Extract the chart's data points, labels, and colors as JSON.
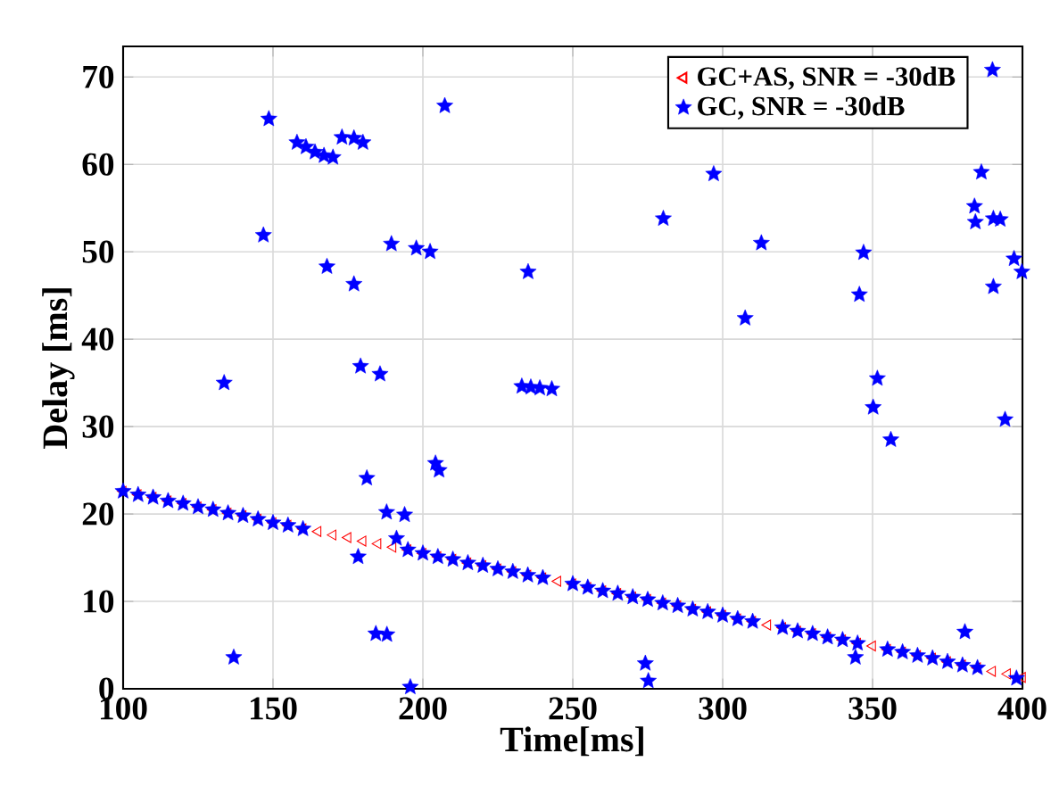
{
  "chart_data": {
    "type": "scatter",
    "xlabel": "Time[ms]",
    "ylabel": "Delay [ms]",
    "xlim": [
      100,
      400
    ],
    "ylim": [
      0,
      73.5
    ],
    "xticks": [
      100,
      150,
      200,
      250,
      300,
      350,
      400
    ],
    "yticks": [
      0,
      10,
      20,
      30,
      40,
      50,
      60,
      70
    ],
    "grid": true,
    "legend": "top right",
    "series": [
      {
        "name": "GC+AS, SNR = -30dB",
        "color": "#ff0000",
        "marker": "triangle",
        "x": [
          100,
          105,
          110,
          115,
          120,
          125,
          130,
          135,
          140,
          145,
          150,
          155,
          160,
          165,
          170,
          175,
          180,
          185,
          190,
          195,
          200,
          205,
          210,
          215,
          220,
          225,
          230,
          235,
          240,
          245,
          250,
          255,
          260,
          265,
          270,
          275,
          280,
          285,
          290,
          295,
          300,
          305,
          310,
          315,
          320,
          325,
          330,
          335,
          340,
          345,
          350,
          355,
          360,
          365,
          370,
          375,
          380,
          385,
          390,
          395,
          400
        ],
        "values": [
          22.6,
          22.2,
          21.9,
          21.5,
          21.2,
          20.8,
          20.5,
          20.1,
          19.8,
          19.4,
          19.0,
          18.7,
          18.3,
          18.0,
          17.6,
          17.3,
          16.9,
          16.6,
          16.2,
          15.9,
          15.5,
          15.1,
          14.8,
          14.4,
          14.1,
          13.7,
          13.4,
          13.0,
          12.7,
          12.3,
          12.0,
          11.6,
          11.2,
          10.9,
          10.5,
          10.2,
          9.8,
          9.5,
          9.1,
          8.8,
          8.4,
          8.0,
          7.7,
          7.3,
          7.0,
          6.6,
          6.3,
          5.9,
          5.6,
          5.2,
          4.9,
          4.5,
          4.2,
          3.8,
          3.5,
          3.1,
          2.7,
          2.4,
          2.0,
          1.7,
          1.3
        ]
      },
      {
        "name": "GC, SNR = -30dB",
        "color": "#0000ff",
        "marker": "star",
        "x": [
          100,
          105,
          110,
          115,
          120,
          125,
          130,
          135,
          140,
          145,
          150,
          155,
          160,
          195,
          200,
          205,
          210,
          215,
          220,
          225,
          230,
          235,
          240,
          250,
          255,
          260,
          265,
          270,
          275,
          280,
          285,
          290,
          295,
          300,
          305,
          310,
          320,
          325,
          330,
          335,
          340,
          345,
          355,
          360,
          365,
          370,
          375,
          380,
          385,
          398,
          148.6,
          158,
          161,
          164,
          167,
          170,
          173,
          177,
          180,
          207.3,
          146.8,
          189.5,
          197.8,
          202.4,
          168,
          177,
          235.1,
          179.2,
          185.7,
          133.7,
          233,
          236,
          239,
          243,
          181.3,
          204.2,
          205.4,
          187.9,
          193.9,
          191.2,
          178.4,
          184.3,
          188,
          136.9,
          195.8,
          297,
          280.2,
          312.9,
          347,
          345.6,
          307.5,
          351.6,
          386.3,
          384,
          384.3,
          390.3,
          392.6,
          397.2,
          399.8,
          390.3,
          390,
          350.2,
          356.1,
          394.2,
          380.8,
          274.2,
          275.2,
          344.3
        ],
        "values": [
          22.6,
          22.2,
          21.9,
          21.5,
          21.2,
          20.8,
          20.5,
          20.1,
          19.8,
          19.4,
          19.0,
          18.7,
          18.3,
          15.9,
          15.5,
          15.1,
          14.8,
          14.4,
          14.1,
          13.7,
          13.4,
          13.0,
          12.7,
          12.0,
          11.6,
          11.2,
          10.9,
          10.5,
          10.2,
          9.8,
          9.5,
          9.1,
          8.8,
          8.4,
          8.0,
          7.7,
          7.0,
          6.6,
          6.3,
          5.9,
          5.6,
          5.2,
          4.5,
          4.2,
          3.8,
          3.5,
          3.1,
          2.7,
          2.4,
          1.2,
          65.2,
          62.5,
          62.0,
          61.4,
          61.0,
          60.8,
          63.1,
          63.0,
          62.5,
          66.7,
          51.9,
          50.9,
          50.4,
          50.0,
          48.3,
          46.3,
          47.7,
          36.9,
          36.0,
          35.0,
          34.6,
          34.5,
          34.4,
          34.3,
          24.1,
          25.8,
          25.0,
          20.2,
          19.9,
          17.2,
          15.1,
          6.3,
          6.2,
          3.6,
          0.2,
          58.9,
          53.8,
          51.0,
          49.9,
          45.1,
          42.4,
          35.5,
          59.1,
          55.2,
          53.4,
          53.8,
          53.7,
          49.2,
          47.7,
          46.0,
          70.8,
          32.2,
          28.5,
          30.8,
          6.5,
          2.9,
          0.9,
          3.6
        ]
      }
    ]
  }
}
